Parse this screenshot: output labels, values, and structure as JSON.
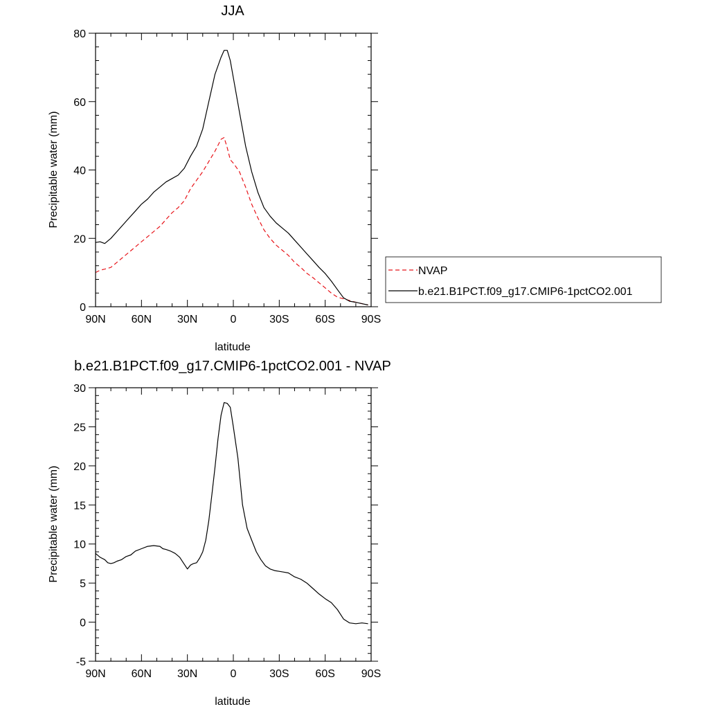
{
  "chart_data": [
    {
      "type": "line",
      "title": "JJA",
      "xlabel": "latitude",
      "ylabel": "Precipitable water (mm)",
      "xlim": [
        90,
        -90
      ],
      "ylim": [
        0,
        80
      ],
      "x_ticks": [
        {
          "value": 90,
          "label": "90N"
        },
        {
          "value": 60,
          "label": "60N"
        },
        {
          "value": 30,
          "label": "30N"
        },
        {
          "value": 0,
          "label": "0"
        },
        {
          "value": -30,
          "label": "30S"
        },
        {
          "value": -60,
          "label": "60S"
        },
        {
          "value": -90,
          "label": "90S"
        }
      ],
      "y_ticks": [
        {
          "value": 0,
          "label": "0"
        },
        {
          "value": 20,
          "label": "20"
        },
        {
          "value": 40,
          "label": "40"
        },
        {
          "value": 60,
          "label": "60"
        },
        {
          "value": 80,
          "label": "80"
        }
      ],
      "legend_position": "right",
      "series": [
        {
          "name": "NVAP",
          "color": "#e8141a",
          "dash": "dashed",
          "x": [
            90,
            87,
            84,
            80,
            76,
            72,
            68,
            64,
            60,
            56,
            52,
            48,
            44,
            40,
            36,
            32,
            28,
            24,
            20,
            16,
            12,
            8,
            6,
            4,
            2,
            0,
            -4,
            -8,
            -12,
            -16,
            -20,
            -24,
            -28,
            -32,
            -36,
            -40,
            -44,
            -48,
            -52,
            -56,
            -60,
            -64,
            -68,
            -72,
            -76,
            -80,
            -84,
            -88
          ],
          "values": [
            10,
            10.7,
            11,
            11.5,
            13,
            14.5,
            16,
            17.5,
            19,
            20.5,
            22,
            23.5,
            25.5,
            27.5,
            29,
            31,
            34.5,
            37,
            39.5,
            42.5,
            45.5,
            49,
            49.5,
            46.5,
            43,
            42,
            39.5,
            35,
            30,
            26,
            22.5,
            20,
            18,
            16.5,
            15,
            13,
            11.5,
            9.8,
            8.5,
            7,
            5.5,
            4,
            2.8,
            2.3,
            1.8,
            1.3,
            0.9,
            0.5
          ]
        },
        {
          "name": "b.e21.B1PCT.f09_g17.CMIP6-1pctCO2.001",
          "color": "#000000",
          "dash": "solid",
          "x": [
            90,
            87,
            84,
            80,
            76,
            72,
            68,
            64,
            60,
            56,
            52,
            48,
            44,
            40,
            36,
            32,
            28,
            24,
            20,
            16,
            12,
            8,
            6,
            4,
            2,
            0,
            -4,
            -8,
            -12,
            -16,
            -20,
            -24,
            -28,
            -32,
            -36,
            -40,
            -44,
            -48,
            -52,
            -56,
            -60,
            -64,
            -68,
            -72,
            -76,
            -80,
            -84,
            -88
          ],
          "values": [
            18.8,
            19,
            18.5,
            20,
            22,
            24,
            26,
            28,
            30,
            31.5,
            33.5,
            35,
            36.5,
            37.5,
            38.5,
            40.5,
            44,
            47,
            52,
            60,
            68,
            73,
            75,
            75,
            72,
            67,
            57,
            47,
            39.5,
            33.5,
            29,
            26.5,
            24.5,
            23,
            21.5,
            19.5,
            17.5,
            15.5,
            13.5,
            11.5,
            9.7,
            7.5,
            5,
            2.6,
            1.6,
            1.3,
            0.9,
            0.5
          ]
        }
      ]
    },
    {
      "type": "line",
      "title": "b.e21.B1PCT.f09_g17.CMIP6-1pctCO2.001 - NVAP",
      "xlabel": "latitude",
      "ylabel": "Precipitable water (mm)",
      "xlim": [
        90,
        -90
      ],
      "ylim": [
        -5,
        30
      ],
      "x_ticks": [
        {
          "value": 90,
          "label": "90N"
        },
        {
          "value": 60,
          "label": "60N"
        },
        {
          "value": 30,
          "label": "30N"
        },
        {
          "value": 0,
          "label": "0"
        },
        {
          "value": -30,
          "label": "30S"
        },
        {
          "value": -60,
          "label": "60S"
        },
        {
          "value": -90,
          "label": "90S"
        }
      ],
      "y_ticks": [
        {
          "value": -5,
          "label": "-5"
        },
        {
          "value": 0,
          "label": "0"
        },
        {
          "value": 5,
          "label": "5"
        },
        {
          "value": 10,
          "label": "10"
        },
        {
          "value": 15,
          "label": "15"
        },
        {
          "value": 20,
          "label": "20"
        },
        {
          "value": 25,
          "label": "25"
        },
        {
          "value": 30,
          "label": "30"
        }
      ],
      "series": [
        {
          "color": "#000000",
          "dash": "solid",
          "x": [
            90,
            87,
            84,
            82,
            80,
            78,
            76,
            73,
            70,
            67,
            64,
            60,
            56,
            52,
            48,
            46,
            44,
            41,
            38,
            35,
            33,
            31,
            30,
            28,
            26,
            24,
            22,
            20,
            18,
            16,
            14,
            12,
            10,
            8,
            6,
            4,
            2,
            0,
            -3,
            -6,
            -9,
            -12,
            -15,
            -18,
            -21,
            -24,
            -27,
            -30,
            -33,
            -36,
            -40,
            -44,
            -48,
            -52,
            -56,
            -60,
            -64,
            -68,
            -72,
            -76,
            -80,
            -84,
            -88
          ],
          "values": [
            8.8,
            8.3,
            8,
            7.6,
            7.5,
            7.6,
            7.8,
            8,
            8.4,
            8.6,
            9.1,
            9.4,
            9.7,
            9.8,
            9.7,
            9.4,
            9.3,
            9.1,
            8.8,
            8.3,
            7.7,
            7.1,
            6.8,
            7.3,
            7.5,
            7.6,
            8.2,
            9,
            10.5,
            13,
            16.3,
            19.8,
            23.5,
            26.5,
            28.1,
            28,
            27.5,
            25,
            21,
            15,
            12,
            10.5,
            9,
            8,
            7.2,
            6.8,
            6.6,
            6.5,
            6.4,
            6.3,
            5.8,
            5.5,
            5,
            4.3,
            3.6,
            3,
            2.5,
            1.6,
            0.4,
            -0.1,
            -0.2,
            -0.1,
            -0.2
          ]
        }
      ]
    }
  ]
}
